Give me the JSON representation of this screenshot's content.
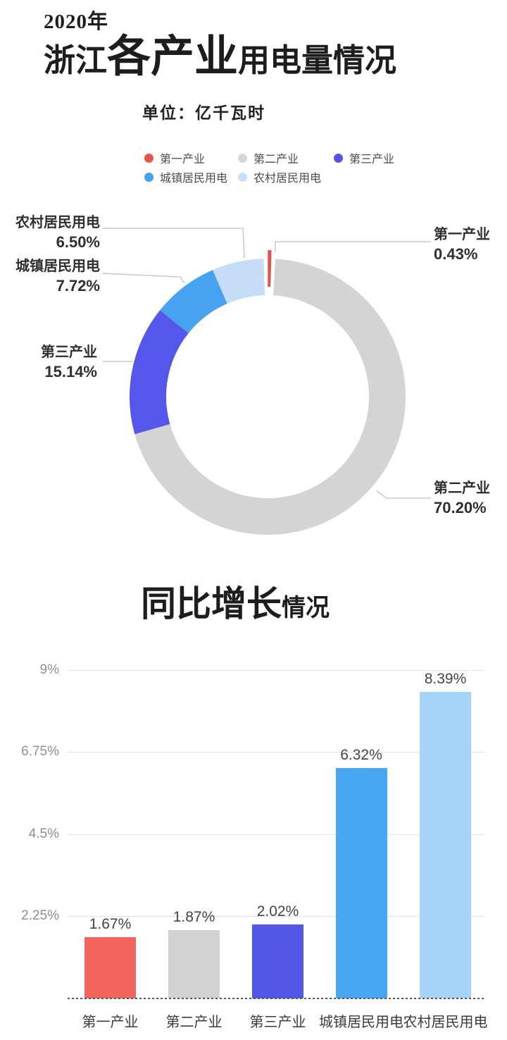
{
  "header": {
    "year": "2020年",
    "title_prefix": "浙江",
    "title_emphasis": "各产业",
    "title_suffix": "用电量情况",
    "unit_label": "单位：亿千瓦时"
  },
  "legend": {
    "items": [
      {
        "label": "第一产业",
        "color": "#e6554c"
      },
      {
        "label": "第二产业",
        "color": "#d6d6d6"
      },
      {
        "label": "第三产业",
        "color": "#5156e6"
      },
      {
        "label": "城镇居民用电",
        "color": "#43a1f0"
      },
      {
        "label": "农村居民用电",
        "color": "#c6e1f9"
      }
    ]
  },
  "section2": {
    "title_main": "同比增长",
    "title_suffix": "情况"
  },
  "chart_data": [
    {
      "type": "donut",
      "title": "2020年浙江各产业用电量情况",
      "unit": "亿千瓦时",
      "categories": [
        "第一产业",
        "第二产业",
        "第三产业",
        "城镇居民用电",
        "农村居民用电"
      ],
      "values": [
        0.43,
        70.2,
        15.14,
        7.72,
        6.5
      ],
      "value_labels": [
        "0.43%",
        "70.20%",
        "15.14%",
        "7.72%",
        "6.50%"
      ],
      "colors": [
        "#e0544c",
        "#d4d4d4",
        "#5456ec",
        "#47a3f2",
        "#c6ddf7"
      ],
      "legend_position": "top",
      "start_angle_deg": 0,
      "direction": "clockwise"
    },
    {
      "type": "bar",
      "title": "同比增长情况",
      "categories": [
        "第一产业",
        "第二产业",
        "第三产业",
        "城镇居民用电",
        "农村居民用电"
      ],
      "values": [
        1.67,
        1.87,
        2.02,
        6.32,
        8.39
      ],
      "value_labels": [
        "1.67%",
        "1.87%",
        "2.02%",
        "6.32%",
        "8.39%"
      ],
      "colors": [
        "#f3645c",
        "#d2d2d2",
        "#5156e4",
        "#47a7f3",
        "#a6d3f8"
      ],
      "ylim": [
        0,
        9
      ],
      "yticks": [
        {
          "value": 2.25,
          "label": "2.25%"
        },
        {
          "value": 4.5,
          "label": "4.5%"
        },
        {
          "value": 6.75,
          "label": "6.75%"
        },
        {
          "value": 9,
          "label": "9%"
        }
      ],
      "grid": true,
      "baseline_style": "dashed"
    }
  ]
}
